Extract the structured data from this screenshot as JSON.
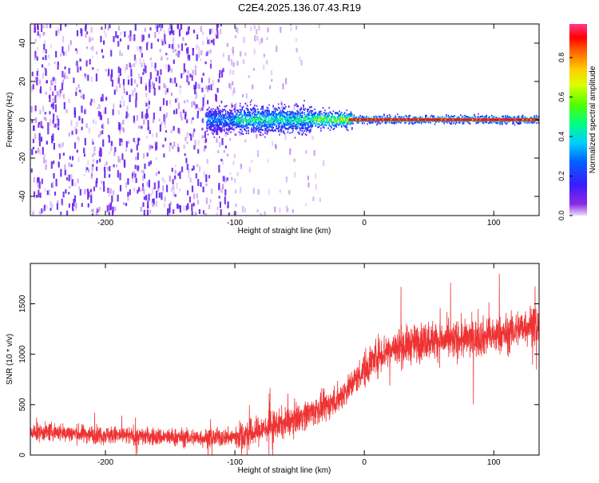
{
  "title": "C2E4.2025.136.07.43.R19",
  "colors": {
    "snr_line": "#ee3333",
    "spectrogram_low": "#7a1ff0",
    "spectrogram_scatter": "#b69cf5",
    "background": "#ffffff"
  },
  "colorbar": {
    "label": "Normalized spectral amplitude",
    "ticks": [
      "0.0",
      "0.2",
      "0.4",
      "0.6",
      "0.8"
    ],
    "tick_values": [
      0.0,
      0.2,
      0.4,
      0.6,
      0.8
    ],
    "range": [
      0,
      0.97
    ],
    "colormap": "rainbow (violet-blue-cyan-green-yellow-orange-red-magenta)"
  },
  "chart_data": [
    {
      "type": "heatmap",
      "title": "C2E4.2025.136.07.43.R19",
      "xlabel": "Height of straight line (km)",
      "ylabel": "Frequency (Hz)",
      "xlim": [
        -258,
        135
      ],
      "ylim": [
        -50,
        50
      ],
      "xticks": [
        -200,
        -100,
        0,
        100
      ],
      "yticks": [
        -40,
        -20,
        0,
        20,
        40
      ],
      "xtick_labels": [
        "-200",
        "-100",
        "0",
        "100"
      ],
      "ytick_labels": [
        "-40",
        "-20",
        "0",
        "20",
        "40"
      ],
      "grid": false,
      "description_regions": [
        {
          "x_range": [
            -258,
            -100
          ],
          "frequency_range": [
            -50,
            50
          ],
          "amplitude": 0.1,
          "pattern": "broadband noise"
        },
        {
          "x_range": [
            -100,
            -30
          ],
          "frequency_range": [
            -50,
            50
          ],
          "amplitude": 0.03,
          "pattern": "sparse noise"
        },
        {
          "x_range": [
            -120,
            135
          ],
          "frequency_range": [
            -3,
            3
          ],
          "amplitude": 0.6,
          "pattern": "narrow signal band near 0 Hz"
        },
        {
          "x_range": [
            -10,
            135
          ],
          "frequency_range": [
            -1,
            1
          ],
          "amplitude": 0.95,
          "pattern": "strong carrier"
        }
      ]
    },
    {
      "type": "line",
      "xlabel": "Height of straight line (km)",
      "ylabel": "SNR (10 * v/v)",
      "xlim": [
        -258,
        135
      ],
      "ylim": [
        0,
        1900
      ],
      "xticks": [
        -200,
        -100,
        0,
        100
      ],
      "yticks": [
        0,
        500,
        1000,
        1500
      ],
      "xtick_labels": [
        "-200",
        "-100",
        "0",
        "100"
      ],
      "ytick_labels": [
        "0",
        "500",
        "1000",
        "1500"
      ],
      "grid": false,
      "series": [
        {
          "x": [
            -258,
            -240,
            -220,
            -200,
            -180,
            -160,
            -140,
            -120,
            -100,
            -90,
            -80,
            -70,
            -60,
            -50,
            -40,
            -30,
            -20,
            -10,
            0,
            10,
            20,
            30,
            40,
            50,
            60,
            70,
            80,
            90,
            100,
            110,
            120,
            130,
            135
          ],
          "y": [
            220,
            230,
            210,
            200,
            190,
            180,
            175,
            170,
            180,
            200,
            250,
            290,
            320,
            380,
            430,
            480,
            560,
            700,
            850,
            990,
            1050,
            1080,
            1110,
            1150,
            1130,
            1140,
            1150,
            1170,
            1180,
            1200,
            1260,
            1300,
            1250
          ]
        }
      ]
    }
  ]
}
